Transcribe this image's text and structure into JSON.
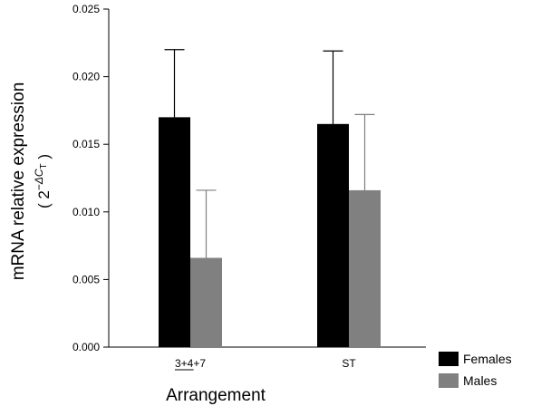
{
  "chart_data": {
    "type": "bar",
    "y_label": "mRNA relative expression",
    "y_label_unit": {
      "prefix": "( 2",
      "exponent": "−ΔC",
      "exponent_subscript": "T",
      "suffix": " )"
    },
    "x_label": "Arrangement",
    "categories": [
      "3+4+7",
      "ST"
    ],
    "series": [
      {
        "name": "Females",
        "color": "#000000",
        "values": [
          0.017,
          0.0165
        ],
        "errors": [
          0.005,
          0.0054
        ]
      },
      {
        "name": "Males",
        "color": "#808080",
        "values": [
          0.0066,
          0.0116
        ],
        "errors": [
          0.005,
          0.0056
        ]
      }
    ],
    "ylim": [
      0,
      0.025
    ],
    "yticks": [
      {
        "value": 0,
        "label": "0.000"
      },
      0.005,
      {
        "value": 0.01,
        "label": "0.010"
      },
      0.015,
      {
        "value": 0.02,
        "label": "0.020"
      },
      0.025
    ],
    "legend": "lower right"
  }
}
